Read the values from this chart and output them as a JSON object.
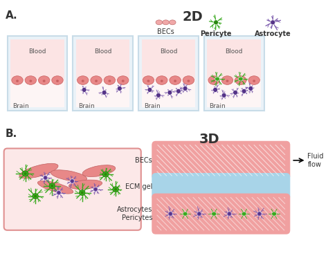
{
  "title_2d": "2D",
  "title_3d": "3D",
  "label_A": "A.",
  "label_B": "B.",
  "legend_becs": "BECs",
  "legend_pericyte": "Pericyte",
  "legend_astrocyte": "Astrocyte",
  "label_blood": "Blood",
  "label_brain": "Brain",
  "label_becs_3d": "BECs",
  "label_ecm": "ECM gel",
  "label_astro_peri": "Astrocytes\nPericytes",
  "label_fluid": "Fluid\nflow",
  "color_pink_light": "#fce8e8",
  "color_pink_bec": "#e88888",
  "color_pink_bec_dark": "#c86060",
  "color_blood": "#fce4e4",
  "color_brain_bg": "#fdf5f5",
  "color_container_wall": "#c8dce8",
  "color_container_bg": "#eaf2f8",
  "color_blue_ecm": "#a8d4e8",
  "color_pink_tube": "#f0a0a0",
  "color_green": "#3aaa20",
  "color_purple": "#7755aa",
  "color_purple_dark": "#553388",
  "color_text": "#333333",
  "color_white": "#ffffff",
  "bg_color": "#ffffff"
}
